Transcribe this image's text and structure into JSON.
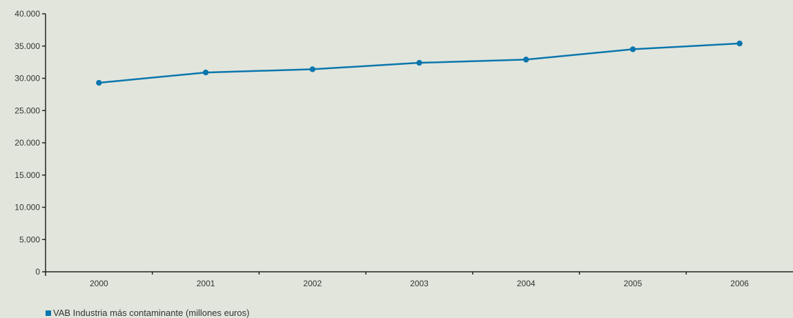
{
  "colors": {
    "background": "#e2e5dc",
    "series": "#0a76ad",
    "axis": "#222222",
    "text": "#333333"
  },
  "chart_data": {
    "type": "line",
    "categories": [
      "2000",
      "2001",
      "2002",
      "2003",
      "2004",
      "2005",
      "2006"
    ],
    "series": [
      {
        "name": "VAB Industria más contaminante (millones euros)",
        "values": [
          29300,
          30900,
          31400,
          32400,
          32900,
          34500,
          35400
        ]
      }
    ],
    "yticks": [
      "0",
      "5.000",
      "10.000",
      "15.000",
      "20.000",
      "25.000",
      "30.000",
      "35.000",
      "40.000"
    ],
    "ylim": [
      0,
      40000
    ],
    "grid": false,
    "legend_position": "bottom-left"
  }
}
